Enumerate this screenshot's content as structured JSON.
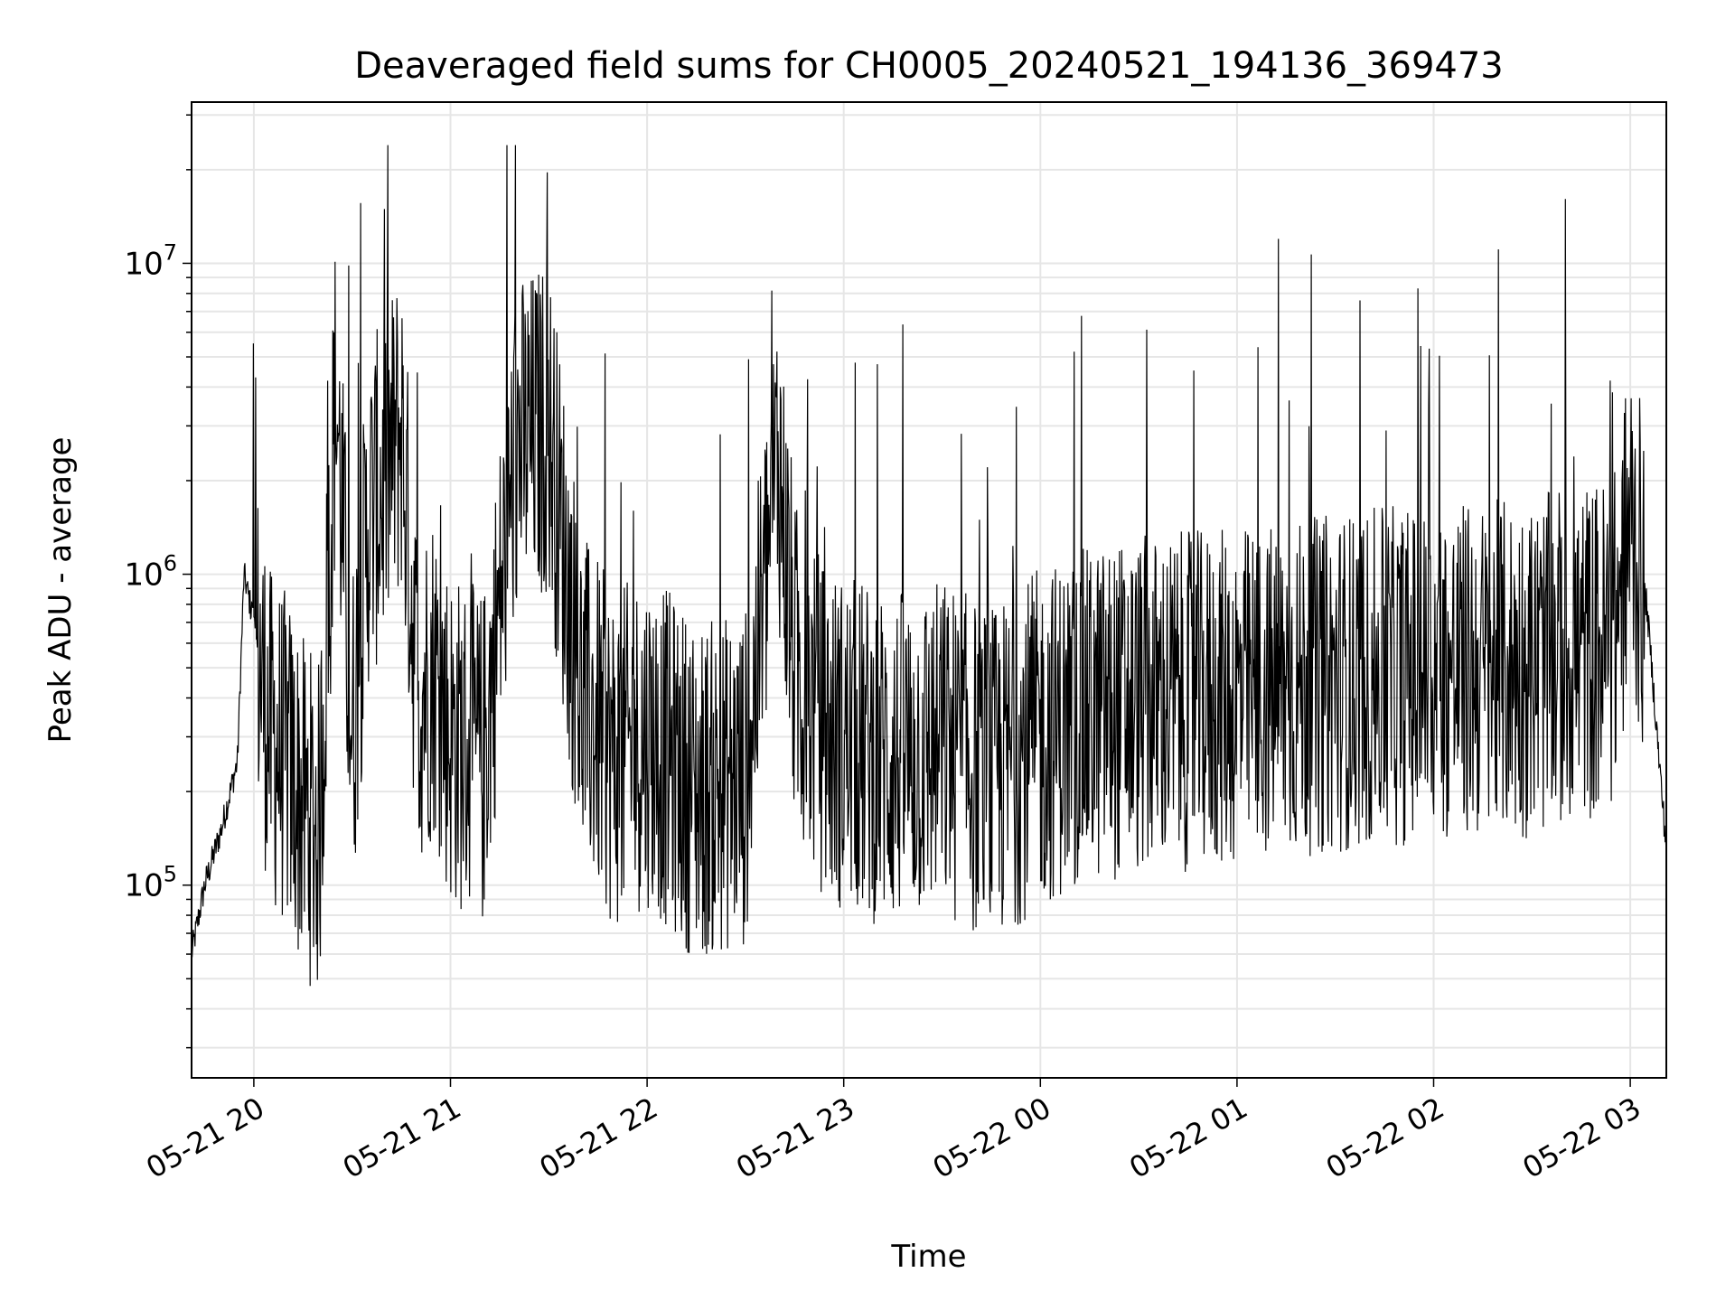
{
  "chart_data": {
    "type": "line",
    "title": "Deaveraged field sums for CH0005_20240521_194136_369473",
    "xlabel": "Time",
    "ylabel": "Peak ADU - average",
    "yscale": "log",
    "ylim": [
      24000,
      33000000
    ],
    "xlim": [
      "2024-05-21 19:41",
      "2024-05-22 03:11"
    ],
    "x_tick_labels": [
      "05-21 20",
      "05-21 21",
      "05-21 22",
      "05-21 23",
      "05-22 00",
      "05-22 01",
      "05-22 02",
      "05-22 03"
    ],
    "y_tick_labels": [
      {
        "base": "10",
        "exp": "5"
      },
      {
        "base": "10",
        "exp": "6"
      },
      {
        "base": "10",
        "exp": "7"
      }
    ],
    "grid": true,
    "line_color": "#000000",
    "series": [
      {
        "x": [
          "2024-05-21 19:41",
          "2024-05-21 19:45",
          "2024-05-21 19:50",
          "2024-05-21 19:55",
          "2024-05-21 19:57",
          "2024-05-21 20:00",
          "2024-05-21 20:05",
          "2024-05-21 20:10",
          "2024-05-21 20:15",
          "2024-05-21 20:20",
          "2024-05-21 20:25",
          "2024-05-21 20:30",
          "2024-05-21 20:35",
          "2024-05-21 20:40",
          "2024-05-21 20:45",
          "2024-05-21 20:50",
          "2024-05-21 20:55",
          "2024-05-21 21:00",
          "2024-05-21 21:10",
          "2024-05-21 21:20",
          "2024-05-21 21:30",
          "2024-05-21 21:40",
          "2024-05-21 21:50",
          "2024-05-21 22:00",
          "2024-05-21 22:15",
          "2024-05-21 22:30",
          "2024-05-21 22:40",
          "2024-05-21 22:45",
          "2024-05-21 22:55",
          "2024-05-21 23:15",
          "2024-05-21 23:30",
          "2024-05-21 23:45",
          "2024-05-22 00:00",
          "2024-05-22 00:15",
          "2024-05-22 00:30",
          "2024-05-22 01:00",
          "2024-05-22 01:30",
          "2024-05-22 02:00",
          "2024-05-22 02:30",
          "2024-05-22 02:55",
          "2024-05-22 03:00",
          "2024-05-22 03:05",
          "2024-05-22 03:11"
        ],
        "y": [
          60000,
          100000,
          150000,
          250000,
          1000000,
          700000,
          300000,
          250000,
          180000,
          150000,
          4000000,
          300000,
          1500000,
          2000000,
          3000000,
          400000,
          500000,
          300000,
          250000,
          2500000,
          3000000,
          400000,
          250000,
          300000,
          200000,
          220000,
          2500000,
          500000,
          300000,
          250000,
          280000,
          220000,
          300000,
          350000,
          380000,
          400000,
          450000,
          480000,
          500000,
          600000,
          1500000,
          800000,
          130000
        ]
      }
    ]
  }
}
